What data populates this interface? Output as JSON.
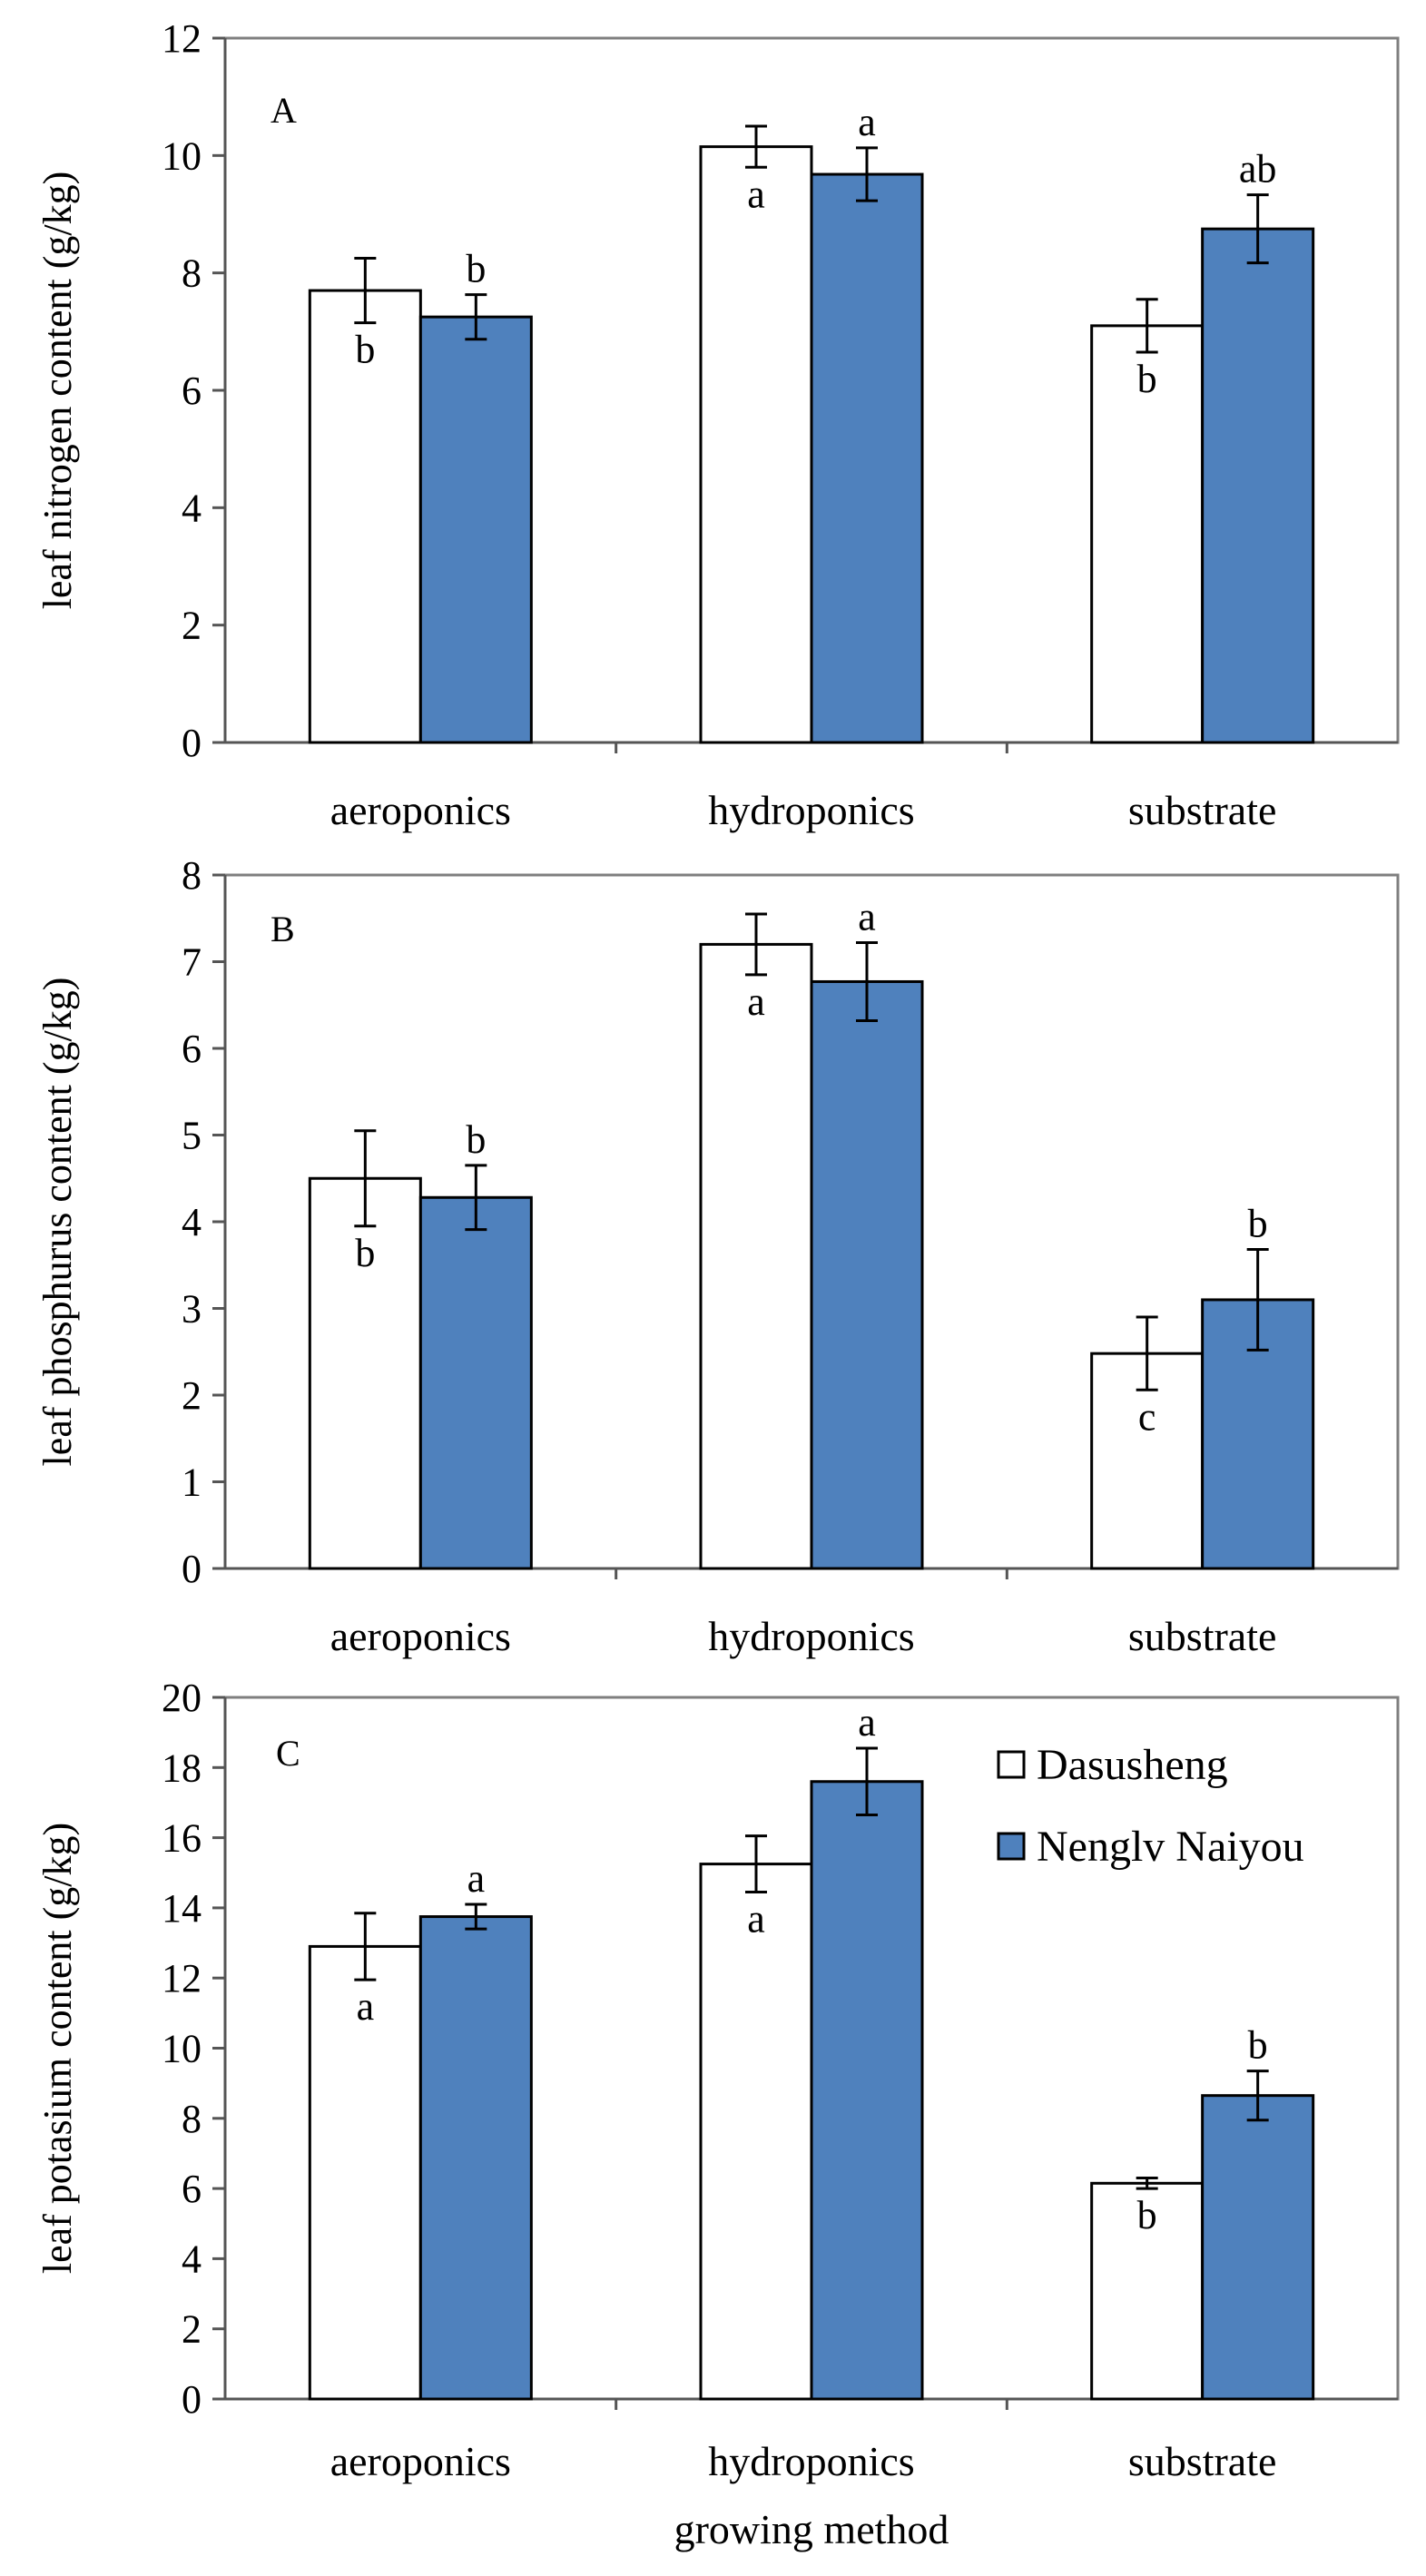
{
  "colors": {
    "dasusheng_fill": "#ffffff",
    "nenglv_fill": "#4f81bd",
    "stroke": "#000000",
    "axis": "#7f7f7f"
  },
  "chart_data": [
    {
      "type": "bar",
      "panel": "A",
      "ylabel": "leaf nitrogen content (g/kg)",
      "xlabel": "",
      "categories": [
        "aeroponics",
        "hydroponics",
        "substrate"
      ],
      "ylim": [
        0,
        12
      ],
      "yticks": [
        "0",
        "2",
        "4",
        "6",
        "8",
        "10",
        "12"
      ],
      "series": [
        {
          "name": "Dasusheng",
          "values": [
            7.7,
            10.15,
            7.1
          ],
          "errors": [
            0.55,
            0.35,
            0.45
          ],
          "labels": [
            "b",
            "a",
            "b"
          ]
        },
        {
          "name": "Nenglv Naiyou",
          "values": [
            7.25,
            9.68,
            8.75
          ],
          "errors": [
            0.38,
            0.45,
            0.58
          ],
          "labels": [
            "b",
            "a",
            "ab"
          ]
        }
      ],
      "legend": false
    },
    {
      "type": "bar",
      "panel": "B",
      "ylabel": "leaf phosphurus content (g/kg)",
      "xlabel": "",
      "categories": [
        "aeroponics",
        "hydroponics",
        "substrate"
      ],
      "ylim": [
        0,
        8
      ],
      "yticks": [
        "0",
        "1",
        "2",
        "3",
        "4",
        "5",
        "6",
        "7",
        "8"
      ],
      "series": [
        {
          "name": "Dasusheng",
          "values": [
            4.5,
            7.2,
            2.48
          ],
          "errors": [
            0.55,
            0.35,
            0.42
          ],
          "labels": [
            "b",
            "a",
            "c"
          ]
        },
        {
          "name": "Nenglv Naiyou",
          "values": [
            4.28,
            6.77,
            3.1
          ],
          "errors": [
            0.37,
            0.45,
            0.58
          ],
          "labels": [
            "b",
            "a",
            "b"
          ]
        }
      ],
      "legend": false
    },
    {
      "type": "bar",
      "panel": "C",
      "ylabel": "leaf potasium content (g/kg)",
      "xlabel": "growing method",
      "categories": [
        "aeroponics",
        "hydroponics",
        "substrate"
      ],
      "ylim": [
        0,
        20
      ],
      "yticks": [
        "0",
        "2",
        "4",
        "6",
        "8",
        "10",
        "12",
        "14",
        "16",
        "18",
        "20"
      ],
      "series": [
        {
          "name": "Dasusheng",
          "values": [
            12.9,
            15.25,
            6.15
          ],
          "errors": [
            0.95,
            0.8,
            0.15
          ],
          "labels": [
            "a",
            "a",
            "b"
          ]
        },
        {
          "name": "Nenglv Naiyou",
          "values": [
            13.75,
            17.6,
            8.65
          ],
          "errors": [
            0.35,
            0.95,
            0.7
          ],
          "labels": [
            "a",
            "a",
            "b"
          ]
        }
      ],
      "legend": true,
      "legend_position": "top-right"
    }
  ]
}
